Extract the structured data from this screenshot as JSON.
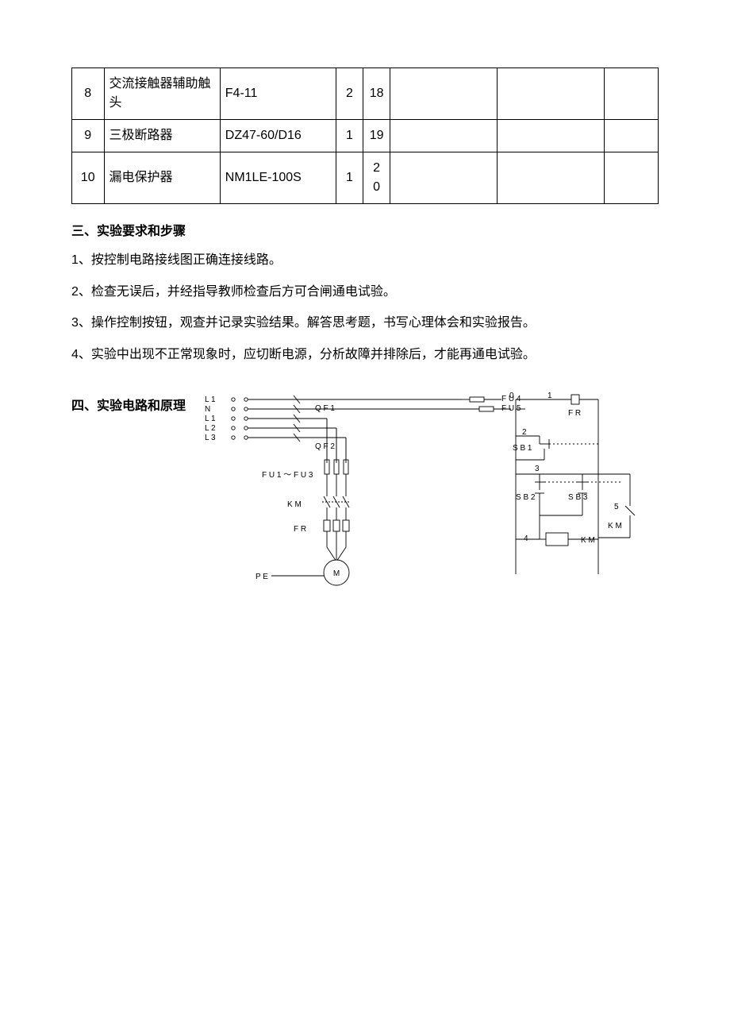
{
  "table": {
    "rows": [
      {
        "n": "8",
        "name": "交流接触器辅助触头",
        "model": "F4-11",
        "qty": "2",
        "idx": "18"
      },
      {
        "n": "9",
        "name": "三极断路器",
        "model": "DZ47-60/D16",
        "qty": "1",
        "idx": "19"
      },
      {
        "n": "10",
        "name": "漏电保护器",
        "model": "NM1LE-100S",
        "qty": "1",
        "idx": "20"
      }
    ],
    "idx_split": {
      "10": [
        "2",
        "0"
      ]
    }
  },
  "section3": {
    "title": "三、实验要求和步骤",
    "lines": [
      "1、按控制电路接线图正确连接线路。",
      "2、检查无误后，并经指导教师检查后方可合闸通电试验。",
      "3、操作控制按钮，观查并记录实验结果。解答思考题，书写心理体会和实验报告。",
      "4、实验中出现不正常现象时，应切断电源，分析故障并排除后，才能再通电试验。"
    ]
  },
  "section4": {
    "title": "四、实验电路和原理",
    "labels": {
      "L1a": "L 1",
      "N": "N",
      "L1b": "L 1",
      "L2": "L 2",
      "L3": "L 3",
      "QF1": "Q F 1",
      "QF2": "Q F 2",
      "FU13": "F U 1 ～ F U 3",
      "KM": "K M",
      "FR": "F R",
      "PE": "P E",
      "M": "M",
      "FU4": "F U 4",
      "FU5": "F U 5",
      "FRr": "F R",
      "SB1": "S B 1",
      "SB2": "S B 2",
      "SB3": "S B 3",
      "KMr": "K M",
      "KMr2": "K M",
      "n0": "0",
      "n1": "1",
      "n2": "2",
      "n3": "3",
      "n4": "4",
      "n5": "5"
    },
    "style": {
      "stroke": "#000000",
      "stroke_width": 0.9,
      "text_color": "#000000",
      "font_size": 10,
      "font_family": "sans-serif",
      "bg": "#ffffff"
    }
  }
}
